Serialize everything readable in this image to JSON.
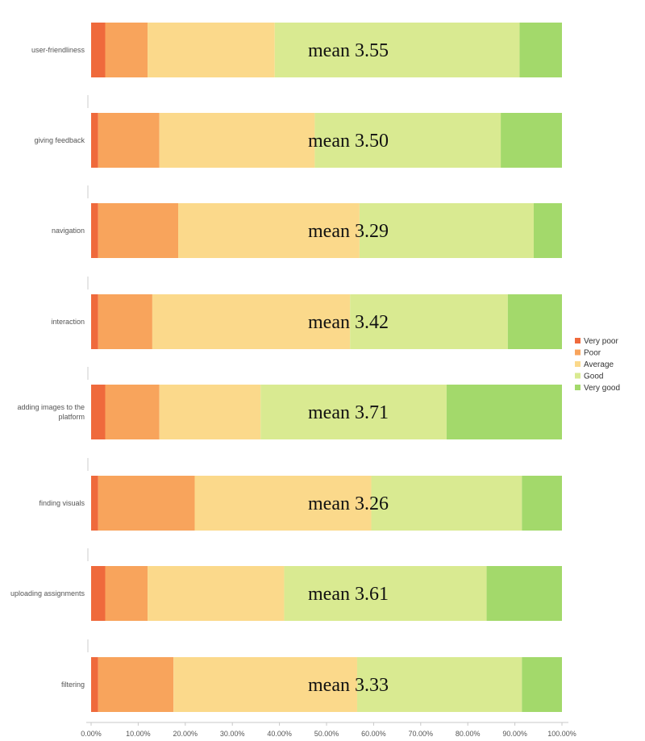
{
  "chart_data": {
    "type": "bar",
    "orientation": "horizontal",
    "stacked": true,
    "categories": [
      "user-friendliness",
      "giving feedback",
      "navigation",
      "interaction",
      "adding images to the platform",
      "finding visuals",
      "uploading assignments",
      "filtering"
    ],
    "series": [
      {
        "name": "Very poor",
        "color": "#ef6a3c",
        "values": [
          3,
          1.5,
          1.5,
          1.5,
          3,
          1.5,
          3,
          1.5
        ]
      },
      {
        "name": "Poor",
        "color": "#f8a45c",
        "values": [
          9,
          13,
          17,
          11.5,
          11.5,
          20.5,
          9,
          16
        ]
      },
      {
        "name": "Average",
        "color": "#fbd98b",
        "values": [
          27,
          33,
          38.5,
          42,
          21.5,
          37.5,
          29,
          39
        ]
      },
      {
        "name": "Good",
        "color": "#d9ea91",
        "values": [
          52,
          39.5,
          37,
          33.5,
          39.5,
          32,
          43,
          35
        ]
      },
      {
        "name": "Very good",
        "color": "#a3d96b",
        "values": [
          9,
          13,
          6,
          11.5,
          24.5,
          8.5,
          16,
          8.5
        ]
      }
    ],
    "annotations": [
      "mean 3.55",
      "mean 3.50",
      "mean 3.29",
      "mean 3.42",
      "mean 3.71",
      "mean 3.26",
      "mean 3.61",
      "mean 3.33"
    ],
    "x_ticks": [
      "0.00%",
      "10.00%",
      "20.00%",
      "30.00%",
      "40.00%",
      "50.00%",
      "60.00%",
      "70.00%",
      "80.00%",
      "90.00%",
      "100.00%"
    ],
    "xlim": [
      0,
      100
    ],
    "legend_position": "right",
    "grid": false
  }
}
